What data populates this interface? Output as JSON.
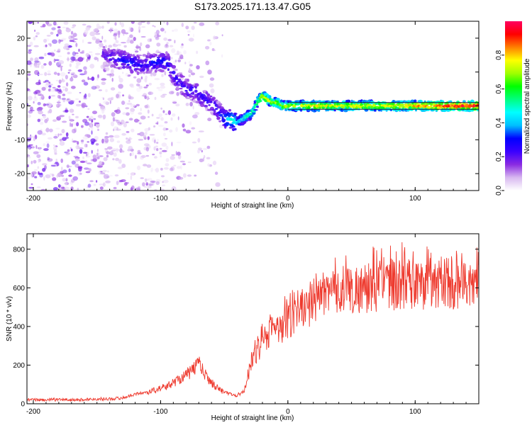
{
  "title": "S173.2025.171.13.47.G05",
  "chart_data": [
    {
      "type": "heatmap",
      "xlabel": "Height of straight line (km)",
      "ylabel": "Frequency (Hz)",
      "xlim": [
        -205,
        150
      ],
      "ylim": [
        -25,
        25
      ],
      "x_ticks": [
        -200,
        -100,
        0,
        100
      ],
      "y_ticks": [
        -20,
        -10,
        0,
        10,
        20
      ],
      "colorbar": {
        "label": "Normalized spectral amplitude",
        "range": [
          0,
          1
        ],
        "ticks": [
          0.0,
          0.2,
          0.4,
          0.6,
          0.8
        ],
        "tick_labels": [
          "0.0",
          "0.2",
          "0.4",
          "0.6",
          "0.8"
        ],
        "colors": [
          "#ffffff",
          "#d8b8f0",
          "#8a2be2",
          "#3a00ff",
          "#0000ff",
          "#00bfff",
          "#00ffff",
          "#00ff80",
          "#00ff00",
          "#a0ff00",
          "#ffff00",
          "#ff8000",
          "#ff0000",
          "#ff0060"
        ]
      },
      "ridge": {
        "x": [
          -145,
          -135,
          -125,
          -115,
          -105,
          -95,
          -88,
          -80,
          -72,
          -65,
          -58,
          -52,
          -48,
          -44,
          -40,
          -36,
          -32,
          -28,
          -24,
          -20,
          -16,
          -12,
          -8,
          -4,
          0,
          10,
          20,
          40,
          60,
          80,
          100,
          120,
          150
        ],
        "freq": [
          15,
          14,
          13,
          12,
          13,
          13,
          8,
          5,
          4,
          2,
          0,
          -3,
          -4,
          -4,
          -5,
          -4,
          -3,
          -2,
          1,
          3,
          2,
          1,
          1,
          0,
          0,
          0,
          0,
          0,
          0,
          0,
          0,
          0,
          0
        ],
        "amplitude": [
          0.2,
          0.25,
          0.3,
          0.25,
          0.3,
          0.3,
          0.25,
          0.25,
          0.25,
          0.25,
          0.25,
          0.3,
          0.45,
          0.5,
          0.45,
          0.5,
          0.55,
          0.55,
          0.6,
          0.75,
          0.8,
          0.7,
          0.75,
          0.7,
          0.75,
          0.75,
          0.8,
          0.75,
          0.8,
          0.8,
          0.85,
          0.95,
          1.0
        ]
      }
    },
    {
      "type": "line",
      "xlabel": "Height of straight line (km)",
      "ylabel": "SNR (10 * v/v)",
      "xlim": [
        -205,
        150
      ],
      "ylim": [
        0,
        880
      ],
      "x_ticks": [
        -200,
        -100,
        0,
        100
      ],
      "y_ticks": [
        0,
        200,
        400,
        600,
        800
      ],
      "line_color": "#ee3a2e",
      "series": [
        {
          "x": [
            -205,
            -190,
            -180,
            -170,
            -160,
            -150,
            -140,
            -130,
            -120,
            -110,
            -100,
            -95,
            -90,
            -85,
            -80,
            -75,
            -72,
            -70,
            -68,
            -65,
            -60,
            -55,
            -50,
            -45,
            -40,
            -35,
            -32,
            -30,
            -28,
            -25,
            -22,
            -20,
            -18,
            -15,
            -12,
            -10,
            -8,
            -5,
            -2,
            0,
            5,
            10,
            15,
            20,
            25,
            30,
            35,
            40,
            45,
            50,
            60,
            70,
            80,
            90,
            100,
            110,
            120,
            130,
            140,
            150
          ],
          "values": [
            20,
            20,
            22,
            20,
            22,
            25,
            25,
            30,
            50,
            60,
            80,
            90,
            110,
            130,
            150,
            170,
            200,
            230,
            180,
            150,
            110,
            80,
            60,
            50,
            40,
            60,
            120,
            170,
            220,
            260,
            290,
            320,
            340,
            370,
            390,
            380,
            370,
            390,
            420,
            420,
            450,
            470,
            490,
            520,
            540,
            560,
            570,
            580,
            590,
            590,
            600,
            610,
            615,
            620,
            610,
            620,
            630,
            620,
            610,
            610
          ]
        }
      ]
    }
  ]
}
